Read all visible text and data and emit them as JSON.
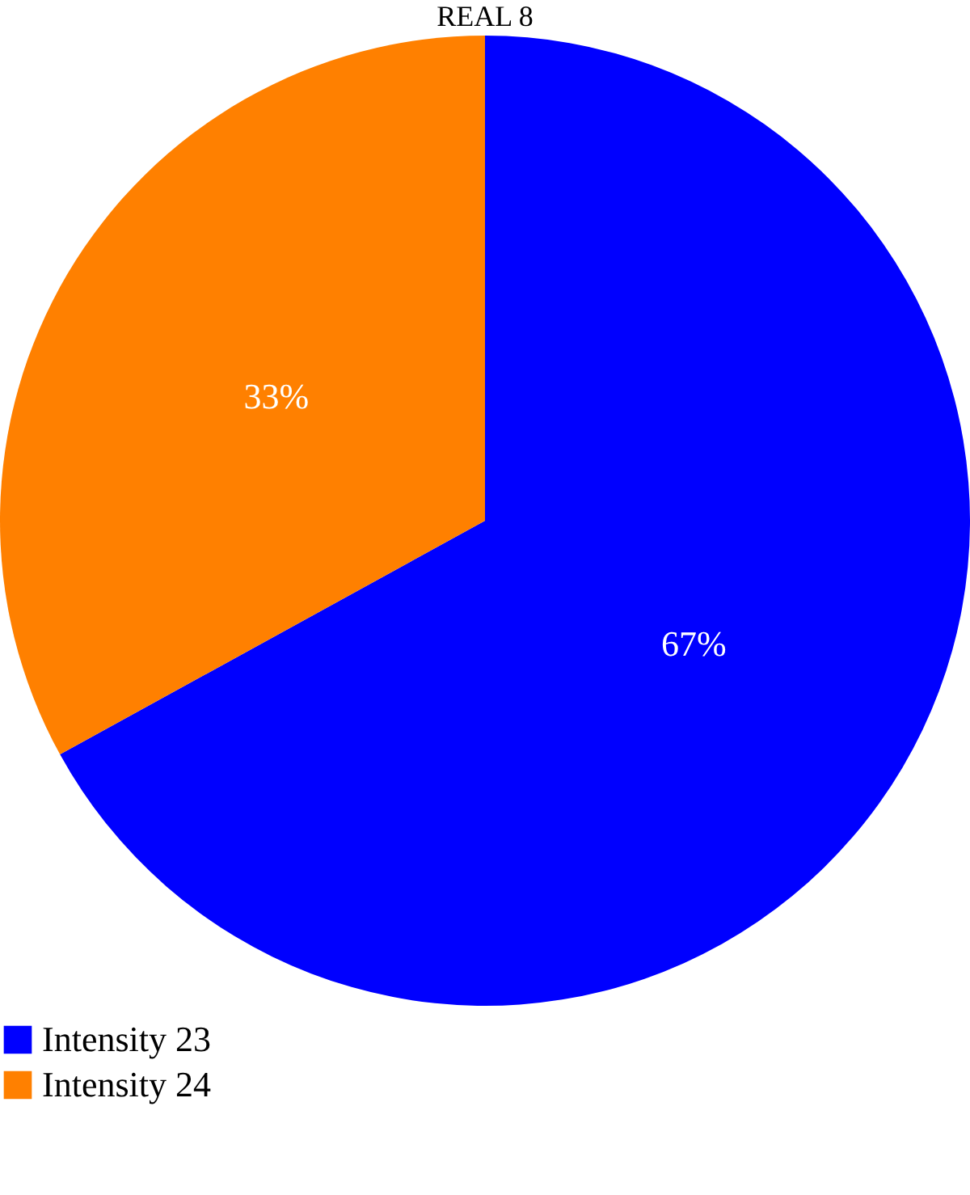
{
  "chart_data": {
    "type": "pie",
    "title": "REAL 8",
    "categories": [
      "Intensity 23",
      "Intensity 24"
    ],
    "values": [
      67,
      33
    ],
    "value_labels": [
      "67%",
      "33%"
    ],
    "colors": [
      "#0000ff",
      "#ff8000"
    ],
    "legend": "bottom left"
  }
}
